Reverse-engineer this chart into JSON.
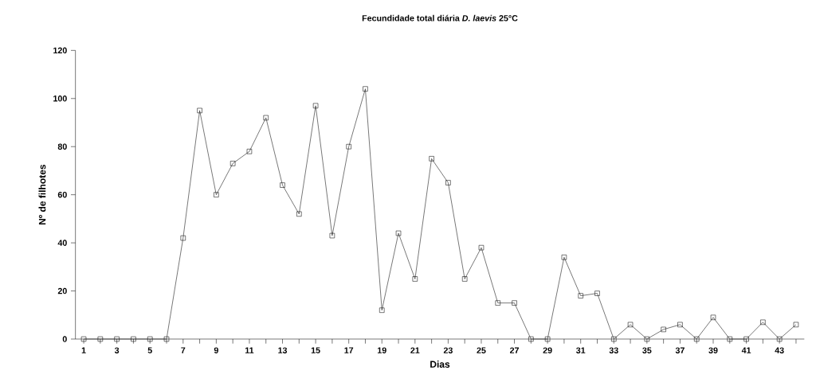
{
  "chart_data": {
    "type": "line",
    "title": "Fecundidade total diária *D. laevis* 25°C",
    "xlabel": "Dias",
    "ylabel": "Nº de filhotes",
    "x": [
      1,
      2,
      3,
      4,
      5,
      6,
      7,
      8,
      9,
      10,
      11,
      12,
      13,
      14,
      15,
      16,
      17,
      18,
      19,
      20,
      21,
      22,
      23,
      24,
      25,
      26,
      27,
      28,
      29,
      30,
      31,
      32,
      33,
      34,
      35,
      36,
      37,
      38,
      39,
      40,
      41,
      42,
      43,
      44
    ],
    "values": [
      0,
      0,
      0,
      0,
      0,
      0,
      42,
      95,
      60,
      73,
      78,
      92,
      64,
      52,
      97,
      43,
      80,
      104,
      12,
      44,
      25,
      75,
      65,
      25,
      38,
      15,
      15,
      0,
      0,
      34,
      18,
      19,
      0,
      6,
      0,
      4,
      6,
      0,
      9,
      0,
      0,
      7,
      0,
      6
    ],
    "color": "#000000",
    "marker": "square",
    "line_style": "solid",
    "xlim": [
      0.5,
      44.5
    ],
    "xticks": [
      1,
      {
        "value": 2,
        "label": null
      },
      3,
      {
        "value": 4,
        "label": null
      },
      5,
      {
        "value": 6,
        "label": null
      },
      7,
      {
        "value": 8,
        "label": null
      },
      9,
      {
        "value": 10,
        "label": null
      },
      11,
      {
        "value": 12,
        "label": null
      },
      13,
      {
        "value": 14,
        "label": null
      },
      15,
      {
        "value": 16,
        "label": null
      },
      17,
      {
        "value": 18,
        "label": null
      },
      19,
      {
        "value": 20,
        "label": null
      },
      21,
      {
        "value": 22,
        "label": null
      },
      23,
      {
        "value": 24,
        "label": null
      },
      25,
      {
        "value": 26,
        "label": null
      },
      27,
      {
        "value": 28,
        "label": null
      },
      29,
      {
        "value": 30,
        "label": null
      },
      31,
      {
        "value": 32,
        "label": null
      },
      33,
      {
        "value": 34,
        "label": null
      },
      35,
      {
        "value": 36,
        "label": null
      },
      37,
      {
        "value": 38,
        "label": null
      },
      39,
      {
        "value": 40,
        "label": null
      },
      41,
      {
        "value": 42,
        "label": null
      },
      43,
      {
        "value": 44,
        "label": null
      }
    ],
    "ylim": [
      0,
      120
    ],
    "yticks": [
      0,
      20,
      40,
      60,
      80,
      100,
      120
    ]
  }
}
